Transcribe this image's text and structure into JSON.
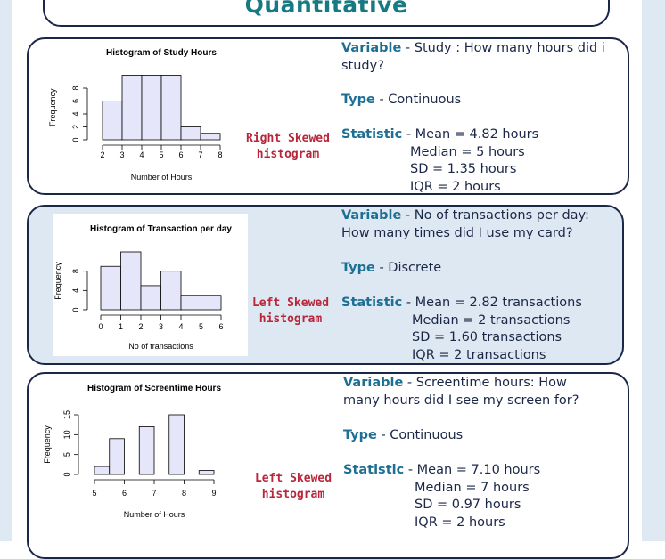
{
  "header": {
    "title": "Quantitative"
  },
  "chart_data": [
    {
      "type": "histogram",
      "title": "Histogram of Study Hours",
      "x_label": "Number of Hours",
      "y_label": "Frequency",
      "bins": [
        2,
        3,
        4,
        5,
        6,
        7,
        8
      ],
      "values": [
        6,
        10,
        10,
        10,
        2,
        1
      ],
      "color": "#e6e6fa",
      "xlim": [
        2,
        8
      ],
      "xticks": [
        2,
        3,
        4,
        5,
        6,
        7,
        8
      ],
      "ylim": [
        0,
        10
      ],
      "yticks": [
        0,
        2,
        4,
        6,
        8
      ]
    },
    {
      "type": "histogram",
      "title": "Histogram of Transaction per day",
      "x_label": "No of transactions",
      "y_label": "Frequency",
      "bins": [
        0,
        1,
        2,
        3,
        4,
        5,
        6
      ],
      "values": [
        9,
        12,
        5,
        8,
        3,
        3
      ],
      "color": "#e6e6fa",
      "xlim": [
        0,
        6
      ],
      "xticks": [
        0,
        1,
        2,
        3,
        4,
        5,
        6
      ],
      "ylim": [
        0,
        12
      ],
      "yticks": [
        0,
        4,
        8
      ]
    },
    {
      "type": "histogram",
      "title": "Histogram of Screentime Hours",
      "x_label": "Number of Hours",
      "y_label": "Frequency",
      "bins": [
        5,
        5.5,
        6,
        6.5,
        7,
        7.5,
        8,
        8.5,
        9
      ],
      "values": [
        2,
        9,
        0,
        12,
        0,
        15,
        0,
        1
      ],
      "color": "#e6e6fa",
      "xlim": [
        5,
        9
      ],
      "xticks": [
        5,
        6,
        7,
        8,
        9
      ],
      "ylim": [
        0,
        15
      ],
      "yticks": [
        0,
        5,
        10,
        15
      ]
    }
  ],
  "sections": [
    {
      "variable_label": "Variable",
      "variable_text": " - Study : How many hours did i study?",
      "type_label": "Type",
      "type_text": " - Continuous",
      "skew": [
        "Right Skewed",
        "histogram"
      ],
      "statistic_label": "Statistic",
      "stats": [
        "- Mean = 4.82 hours",
        "Median = 5 hours",
        "SD = 1.35 hours",
        "IQR = 2 hours"
      ]
    },
    {
      "variable_label": "Variable",
      "variable_text": " - No of transactions per day: How many times did I use my card?",
      "type_label": "Type",
      "type_text": " - Discrete",
      "skew": [
        "Left Skewed",
        "histogram"
      ],
      "statistic_label": "Statistic",
      "stats": [
        "- Mean = 2.82 transactions",
        "Median = 2 transactions",
        "SD = 1.60 transactions",
        "IQR = 2 transactions"
      ]
    },
    {
      "variable_label": "Variable",
      "variable_text": " - Screentime hours: How many hours did I see my screen for?",
      "type_label": "Type",
      "type_text": " - Continuous",
      "skew": [
        "Left Skewed",
        "histogram"
      ],
      "statistic_label": "Statistic",
      "stats": [
        "- Mean = 7.10 hours",
        "Median = 7 hours",
        "SD = 0.97 hours",
        "IQR = 2 hours"
      ]
    }
  ]
}
